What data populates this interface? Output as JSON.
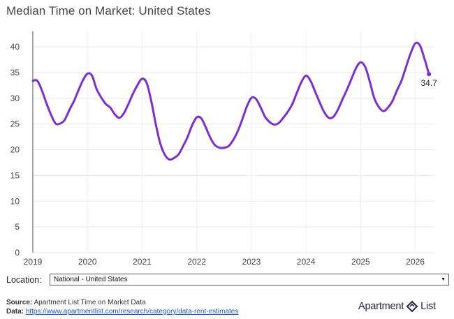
{
  "chart_title": "Median Time on Market: United States",
  "chart_data": {
    "type": "line",
    "title": "Median Time on Market: United States",
    "xlabel": "",
    "ylabel": "",
    "xlim": [
      2019,
      2026.35
    ],
    "ylim": [
      0,
      43
    ],
    "x_ticks": [
      "2019",
      "2020",
      "2021",
      "2022",
      "2023",
      "2024",
      "2025",
      "2026"
    ],
    "y_ticks": [
      0,
      5,
      10,
      15,
      20,
      25,
      30,
      35,
      40
    ],
    "grid": true,
    "legend": "none",
    "color": "#7b2fd0",
    "series": [
      {
        "x": [
          2019.0,
          2019.083,
          2019.167,
          2019.25,
          2019.333,
          2019.417,
          2019.5,
          2019.583,
          2019.667,
          2019.75,
          2019.833,
          2019.917,
          2020.0,
          2020.083,
          2020.167,
          2020.25,
          2020.333,
          2020.417,
          2020.5,
          2020.583,
          2020.667,
          2020.75,
          2020.833,
          2020.917,
          2021.0,
          2021.083,
          2021.167,
          2021.25,
          2021.333,
          2021.417,
          2021.5,
          2021.583,
          2021.667,
          2021.75,
          2021.833,
          2021.917,
          2022.0,
          2022.083,
          2022.167,
          2022.25,
          2022.333,
          2022.417,
          2022.5,
          2022.583,
          2022.667,
          2022.75,
          2022.833,
          2022.917,
          2023.0,
          2023.083,
          2023.167,
          2023.25,
          2023.333,
          2023.417,
          2023.5,
          2023.583,
          2023.667,
          2023.75,
          2023.833,
          2023.917,
          2024.0,
          2024.083,
          2024.167,
          2024.25,
          2024.333,
          2024.417,
          2024.5,
          2024.583,
          2024.667,
          2024.75,
          2024.833,
          2024.917,
          2025.0,
          2025.083,
          2025.167,
          2025.25,
          2025.333,
          2025.417,
          2025.5,
          2025.583,
          2025.667,
          2025.75,
          2025.833,
          2025.917,
          2026.0,
          2026.083,
          2026.167,
          2026.25
        ],
        "y": [
          33.4,
          33.4,
          31.5,
          29.0,
          26.8,
          25.1,
          25.1,
          25.8,
          27.7,
          29.4,
          31.5,
          33.5,
          34.8,
          34.4,
          31.8,
          30.2,
          28.9,
          28.2,
          26.9,
          26.2,
          27.1,
          28.9,
          30.9,
          32.6,
          33.8,
          33.0,
          29.5,
          25.0,
          21.2,
          19.0,
          18.1,
          18.4,
          19.1,
          20.7,
          22.5,
          24.8,
          26.3,
          26.1,
          24.3,
          22.3,
          20.9,
          20.4,
          20.4,
          20.7,
          21.9,
          23.6,
          25.9,
          28.4,
          30.1,
          29.9,
          28.3,
          26.4,
          25.4,
          24.9,
          25.2,
          26.2,
          27.4,
          28.9,
          31.1,
          33.2,
          34.4,
          33.4,
          31.3,
          29.2,
          27.3,
          26.2,
          26.4,
          27.8,
          29.8,
          31.7,
          33.8,
          35.9,
          37.0,
          36.1,
          33.2,
          30.0,
          28.3,
          27.5,
          28.2,
          29.5,
          31.6,
          33.5,
          36.2,
          38.8,
          40.7,
          40.3,
          37.7,
          34.7
        ]
      }
    ],
    "end_label": "34.7"
  },
  "location": {
    "label": "Location:",
    "selected": "National - United States"
  },
  "footer": {
    "source_label": "Source:",
    "source_text": "Apartment List Time on Market Data",
    "data_label": "Data:",
    "data_link": "https://www.apartmentlist.com/research/category/data-rent-estimates"
  },
  "logo": {
    "left": "Apartment",
    "right": "List"
  }
}
